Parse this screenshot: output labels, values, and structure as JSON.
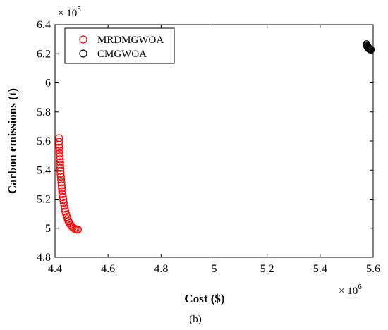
{
  "chart_data": {
    "type": "scatter",
    "xlabel": "Cost ($)",
    "ylabel": "Carbon emissions (t)",
    "x_exponent_label": "× 10",
    "x_exponent": "6",
    "y_exponent_label": "× 10",
    "y_exponent": "5",
    "caption": "(b)",
    "xlim": [
      4.4,
      5.6
    ],
    "ylim": [
      4.8,
      6.4
    ],
    "x_tick_labels": [
      "4.4",
      "4.6",
      "4.8",
      "5",
      "5.2",
      "5.4",
      "5.6"
    ],
    "y_tick_labels": [
      "4.8",
      "5",
      "5.2",
      "5.4",
      "5.6",
      "5.8",
      "6",
      "6.2",
      "6.4"
    ],
    "legend_position": "top-left",
    "series": [
      {
        "name": "MRDMGWOA",
        "color": "#ff0000",
        "marker": "open-circle",
        "points": [
          [
            4.415,
            5.62
          ],
          [
            4.415,
            5.595
          ],
          [
            4.416,
            5.575
          ],
          [
            4.416,
            5.555
          ],
          [
            4.417,
            5.535
          ],
          [
            4.417,
            5.515
          ],
          [
            4.418,
            5.495
          ],
          [
            4.418,
            5.475
          ],
          [
            4.419,
            5.455
          ],
          [
            4.419,
            5.435
          ],
          [
            4.42,
            5.415
          ],
          [
            4.42,
            5.395
          ],
          [
            4.421,
            5.375
          ],
          [
            4.422,
            5.355
          ],
          [
            4.423,
            5.335
          ],
          [
            4.424,
            5.315
          ],
          [
            4.425,
            5.295
          ],
          [
            4.426,
            5.275
          ],
          [
            4.427,
            5.255
          ],
          [
            4.428,
            5.235
          ],
          [
            4.43,
            5.215
          ],
          [
            4.431,
            5.195
          ],
          [
            4.433,
            5.175
          ],
          [
            4.435,
            5.155
          ],
          [
            4.437,
            5.135
          ],
          [
            4.439,
            5.115
          ],
          [
            4.442,
            5.095
          ],
          [
            4.445,
            5.078
          ],
          [
            4.448,
            5.062
          ],
          [
            4.451,
            5.048
          ],
          [
            4.455,
            5.035
          ],
          [
            4.459,
            5.023
          ],
          [
            4.463,
            5.013
          ],
          [
            4.467,
            5.005
          ],
          [
            4.472,
            4.999
          ],
          [
            4.477,
            4.995
          ],
          [
            4.482,
            4.992
          ],
          [
            4.486,
            4.991
          ]
        ]
      },
      {
        "name": "CMGWOA",
        "color": "#000000",
        "marker": "open-circle",
        "points": [
          [
            5.575,
            6.265
          ],
          [
            5.576,
            6.258
          ],
          [
            5.578,
            6.252
          ],
          [
            5.579,
            6.247
          ],
          [
            5.581,
            6.242
          ],
          [
            5.583,
            6.238
          ],
          [
            5.585,
            6.235
          ],
          [
            5.587,
            6.232
          ],
          [
            5.589,
            6.23
          ],
          [
            5.591,
            6.228
          ]
        ]
      }
    ]
  }
}
